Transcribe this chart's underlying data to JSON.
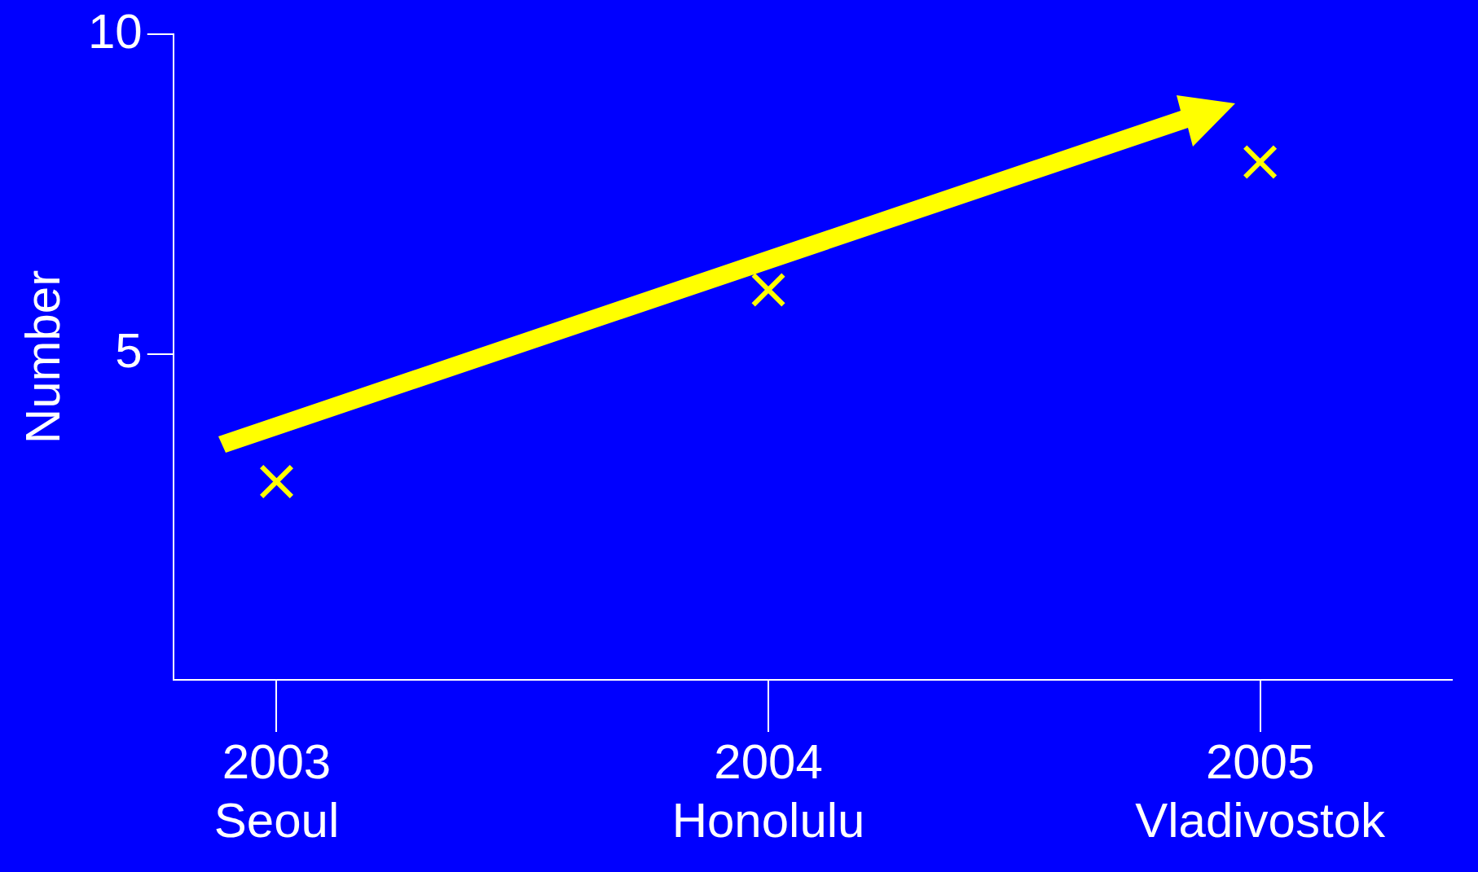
{
  "chart_data": {
    "type": "scatter",
    "ylabel": "Number",
    "categories": [
      "2003\nSeoul",
      "2004\nHonolulu",
      "2005\nVladivostok"
    ],
    "values": [
      3,
      6,
      8
    ],
    "color": "#ffff00",
    "marker": "cross",
    "ylim": [
      -0.1,
      10
    ],
    "yticks": [
      5,
      10
    ],
    "grid": false,
    "legend": false
  }
}
